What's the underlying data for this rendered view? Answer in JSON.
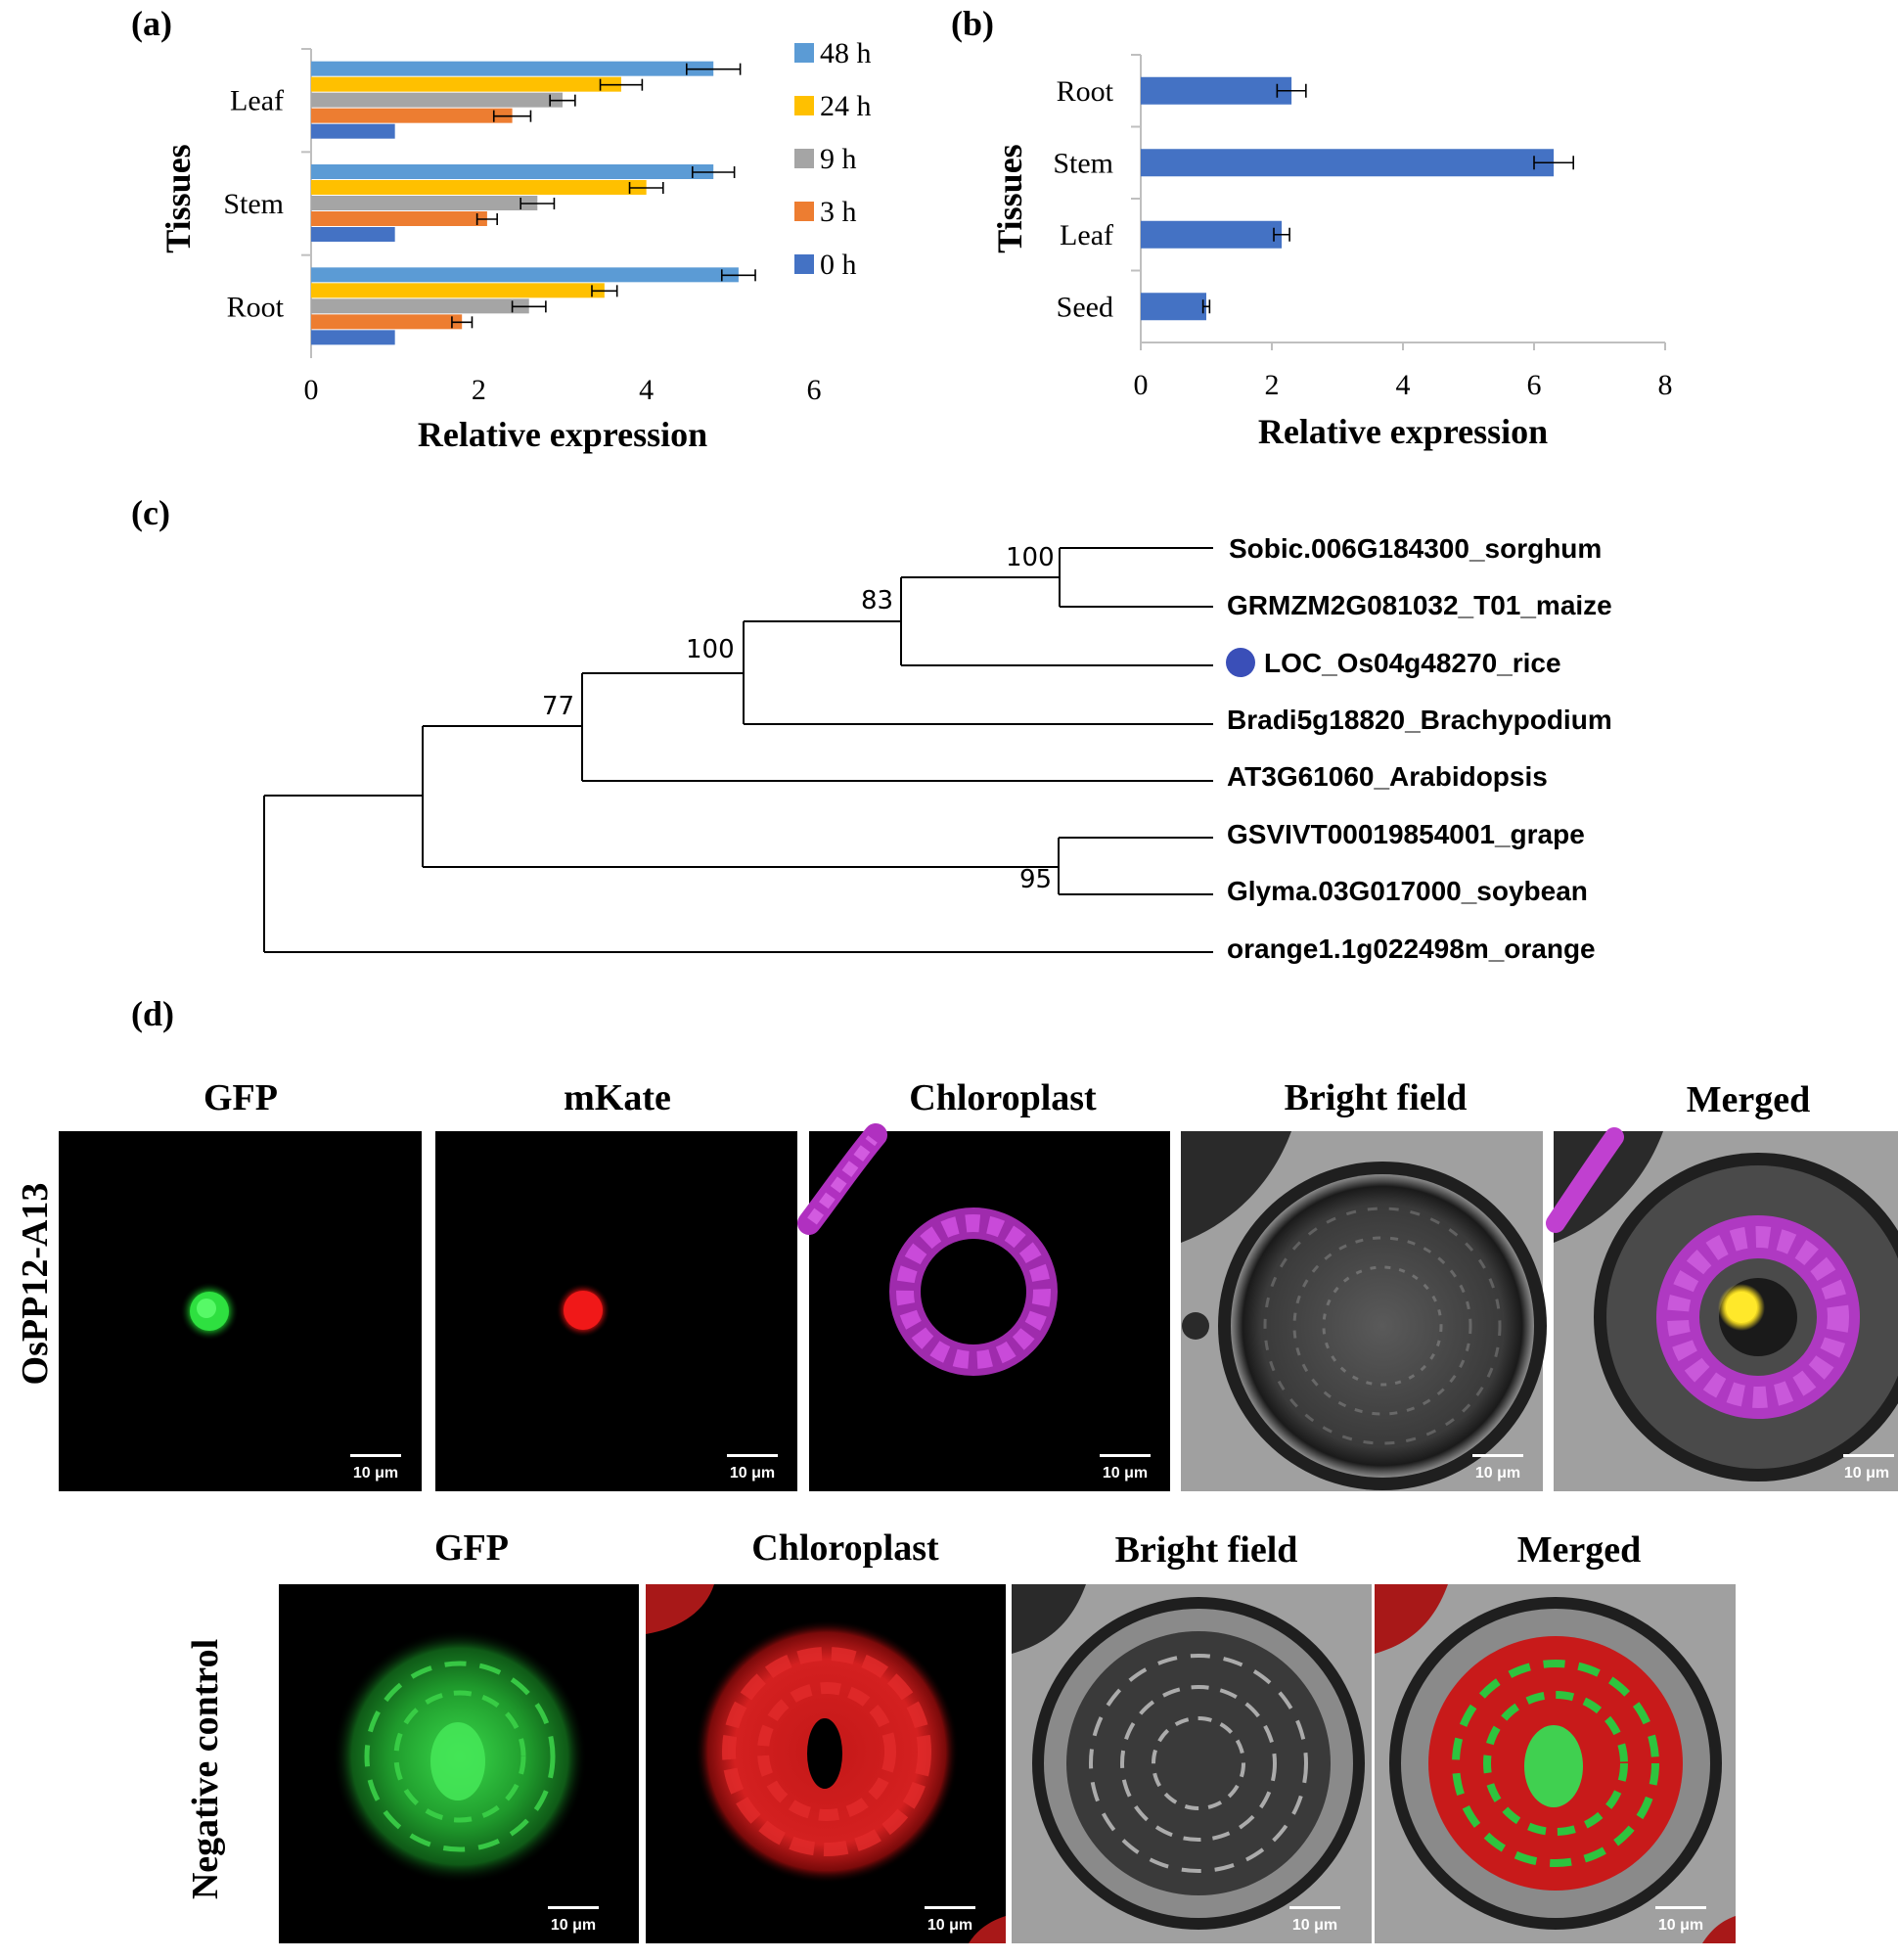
{
  "panel_labels": {
    "a": "(a)",
    "b": "(b)",
    "c": "(c)",
    "d": "(d)"
  },
  "chart_data": [
    {
      "type": "bar",
      "orientation": "horizontal",
      "categories": [
        "Root",
        "Stem",
        "Leaf"
      ],
      "series": [
        {
          "name": "0 h",
          "color": "#4472C4",
          "values": [
            1.0,
            1.0,
            1.0
          ],
          "errors": [
            0.0,
            0.0,
            0.0
          ]
        },
        {
          "name": "3 h",
          "color": "#ED7D31",
          "values": [
            1.8,
            2.1,
            2.4
          ],
          "errors": [
            0.12,
            0.12,
            0.22
          ]
        },
        {
          "name": "9 h",
          "color": "#A5A5A5",
          "values": [
            2.6,
            2.7,
            3.0
          ],
          "errors": [
            0.2,
            0.2,
            0.15
          ]
        },
        {
          "name": "24 h",
          "color": "#FFC000",
          "values": [
            3.5,
            4.0,
            3.7
          ],
          "errors": [
            0.15,
            0.2,
            0.25
          ]
        },
        {
          "name": "48 h",
          "color": "#5B9BD5",
          "values": [
            5.1,
            4.8,
            4.8
          ],
          "errors": [
            0.2,
            0.25,
            0.32
          ]
        }
      ],
      "xlabel": "Relative expression",
      "ylabel": "Tissues",
      "xlim": [
        0,
        6
      ],
      "xticks": [
        "0",
        "2",
        "4",
        "6"
      ],
      "legend_position": "right"
    },
    {
      "type": "bar",
      "orientation": "horizontal",
      "categories": [
        "Seed",
        "Leaf",
        "Stem",
        "Root"
      ],
      "series": [
        {
          "color": "#4472C4",
          "values": [
            1.0,
            2.15,
            6.3,
            2.3
          ],
          "errors": [
            0.05,
            0.12,
            0.3,
            0.22
          ]
        }
      ],
      "xlabel": "Relative expression",
      "ylabel": "Tissues",
      "xlim": [
        0,
        8
      ],
      "xticks": [
        "0",
        "2",
        "4",
        "6",
        "8"
      ]
    }
  ],
  "tree": {
    "leaves": [
      "Sobic.006G184300_sorghum",
      "GRMZM2G081032_T01_maize",
      "LOC_Os04g48270_rice",
      "Bradi5g18820_Brachypodium",
      "AT3G61060_Arabidopsis",
      "GSVIVT00019854001_grape",
      "Glyma.03G017000_soybean",
      "orange1.1g022498m_orange"
    ],
    "bootstrap": [
      "100",
      "83",
      "100",
      "77",
      "95"
    ],
    "highlight_color": "#3A4FB8"
  },
  "microscopy": {
    "row1_label": "OsPP12-A13",
    "row1_titles": [
      "GFP",
      "mKate",
      "Chloroplast",
      "Bright field",
      "Merged"
    ],
    "row2_label": "Negative control",
    "row2_titles": [
      "GFP",
      "Chloroplast",
      "Bright field",
      "Merged"
    ],
    "scale_bar": "10 μm"
  }
}
